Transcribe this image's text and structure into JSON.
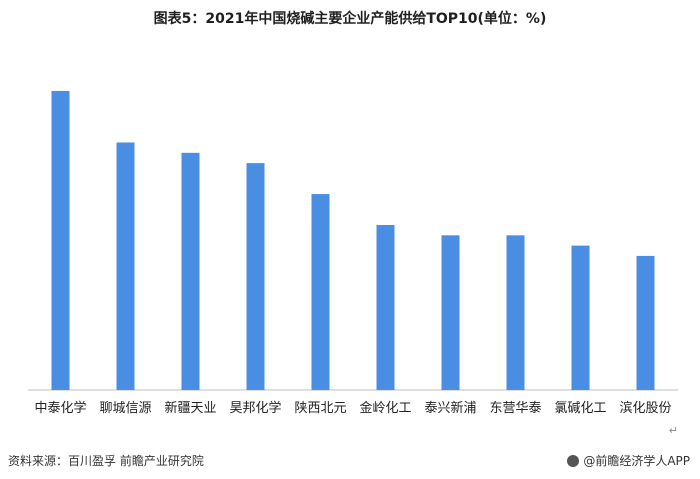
{
  "title": "图表5：2021年中国烧碱主要企业产能供给TOP10(单位：%)",
  "source": "资料来源：百川盈孚  前瞻产业研究院",
  "brand": "@前瞻经济学人APP",
  "return_mark": "↵",
  "colors": {
    "bar": "#4a8ee3",
    "axis": "#bfbfbf",
    "label": "#222222"
  },
  "chart_data": {
    "type": "bar",
    "title": "图表5：2021年中国烧碱主要企业产能供给TOP10(单位：%)",
    "categories": [
      "中泰化学",
      "聊城信源",
      "新疆天业",
      "昊邦化学",
      "陕西北元",
      "金岭化工",
      "泰兴新浦",
      "东营华泰",
      "氯碱化工",
      "滨化股份"
    ],
    "values": [
      2.9,
      2.4,
      2.3,
      2.2,
      1.9,
      1.6,
      1.5,
      1.5,
      1.4,
      1.3
    ],
    "ylim": [
      0,
      3.2
    ],
    "grid": false,
    "legend": "none",
    "xlabel": "",
    "ylabel": ""
  }
}
